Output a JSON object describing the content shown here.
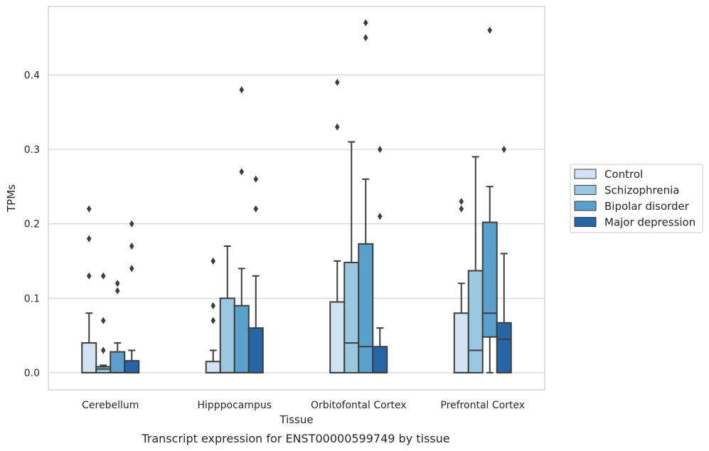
{
  "chart_data": {
    "type": "box",
    "xlabel": "Tissue",
    "ylabel": "TPMs",
    "caption": "Transcript expression for ENST00000599749 by tissue",
    "ylim": [
      -0.023,
      0.492
    ],
    "yticks": [
      0.0,
      0.1,
      0.2,
      0.3,
      0.4
    ],
    "ytick_labels": [
      "0.0",
      "0.1",
      "0.2",
      "0.3",
      "0.4"
    ],
    "grid": "horizontal",
    "legend_position": "right",
    "categories": [
      "Cerebellum",
      "Hipppocampus",
      "Orbitofontal Cortex",
      "Prefrontal Cortex"
    ],
    "series": [
      {
        "name": "Control",
        "color": "#d2e3f3",
        "boxes": [
          {
            "q1": 0.0,
            "median": 0.0,
            "q3": 0.04,
            "whisker_low": 0.0,
            "whisker_high": 0.08,
            "outliers": [
              0.13,
              0.18,
              0.22
            ]
          },
          {
            "q1": 0.0,
            "median": 0.0,
            "q3": 0.015,
            "whisker_low": 0.0,
            "whisker_high": 0.03,
            "outliers": [
              0.07,
              0.09,
              0.15
            ]
          },
          {
            "q1": 0.0,
            "median": 0.0,
            "q3": 0.095,
            "whisker_low": 0.0,
            "whisker_high": 0.15,
            "outliers": [
              0.33,
              0.39
            ]
          },
          {
            "q1": 0.0,
            "median": 0.0,
            "q3": 0.08,
            "whisker_low": 0.0,
            "whisker_high": 0.12,
            "outliers": [
              0.22,
              0.23
            ]
          }
        ]
      },
      {
        "name": "Schizophrenia",
        "color": "#9ac8e0",
        "boxes": [
          {
            "q1": 0.0,
            "median": 0.005,
            "q3": 0.008,
            "whisker_low": 0.0,
            "whisker_high": 0.01,
            "outliers": [
              0.03,
              0.07,
              0.13
            ]
          },
          {
            "q1": 0.0,
            "median": 0.0,
            "q3": 0.1,
            "whisker_low": 0.0,
            "whisker_high": 0.17,
            "outliers": []
          },
          {
            "q1": 0.0,
            "median": 0.04,
            "q3": 0.148,
            "whisker_low": 0.0,
            "whisker_high": 0.31,
            "outliers": []
          },
          {
            "q1": 0.0,
            "median": 0.03,
            "q3": 0.137,
            "whisker_low": 0.0,
            "whisker_high": 0.29,
            "outliers": []
          }
        ]
      },
      {
        "name": "Bipolar disorder",
        "color": "#5aa0cd",
        "boxes": [
          {
            "q1": 0.0,
            "median": 0.0,
            "q3": 0.028,
            "whisker_low": 0.0,
            "whisker_high": 0.04,
            "outliers": [
              0.11,
              0.12
            ]
          },
          {
            "q1": 0.0,
            "median": 0.0,
            "q3": 0.09,
            "whisker_low": 0.0,
            "whisker_high": 0.14,
            "outliers": [
              0.27,
              0.38
            ]
          },
          {
            "q1": 0.0,
            "median": 0.035,
            "q3": 0.173,
            "whisker_low": 0.0,
            "whisker_high": 0.26,
            "outliers": [
              0.45,
              0.47
            ]
          },
          {
            "q1": 0.048,
            "median": 0.08,
            "q3": 0.202,
            "whisker_low": 0.0,
            "whisker_high": 0.25,
            "outliers": [
              0.46
            ]
          }
        ]
      },
      {
        "name": "Major depression",
        "color": "#2565a8",
        "boxes": [
          {
            "q1": 0.0,
            "median": 0.0,
            "q3": 0.016,
            "whisker_low": 0.0,
            "whisker_high": 0.03,
            "outliers": [
              0.14,
              0.17,
              0.2
            ]
          },
          {
            "q1": 0.0,
            "median": 0.0,
            "q3": 0.06,
            "whisker_low": 0.0,
            "whisker_high": 0.13,
            "outliers": [
              0.22,
              0.26
            ]
          },
          {
            "q1": 0.0,
            "median": 0.0,
            "q3": 0.035,
            "whisker_low": 0.0,
            "whisker_high": 0.06,
            "outliers": [
              0.21,
              0.3
            ]
          },
          {
            "q1": 0.0,
            "median": 0.045,
            "q3": 0.067,
            "whisker_low": 0.0,
            "whisker_high": 0.16,
            "outliers": [
              0.3
            ]
          }
        ]
      }
    ]
  }
}
